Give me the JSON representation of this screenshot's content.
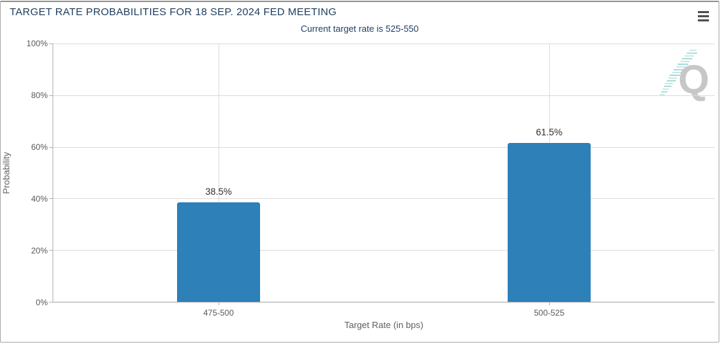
{
  "panel": {
    "title": "TARGET RATE PROBABILITIES FOR 18 SEP. 2024 FED MEETING",
    "subtitle": "Current target rate is 525-550"
  },
  "menu": {
    "icon": "hamburger-menu"
  },
  "watermark": {
    "letter": "Q"
  },
  "colors": {
    "bar": "#2d80b8",
    "title_text": "#1e3c5f",
    "tick_text": "#595959",
    "grid": "#dcdcdc",
    "axis": "#b3b3b3",
    "watermark_gray": "#c7c7c7",
    "watermark_teal": "#9fd8d4"
  },
  "chart_data": {
    "type": "bar",
    "title": "TARGET RATE PROBABILITIES FOR 18 SEP. 2024 FED MEETING",
    "subtitle": "Current target rate is 525-550",
    "categories": [
      "475-500",
      "500-525"
    ],
    "values": [
      38.5,
      61.5
    ],
    "value_labels": [
      "38.5%",
      "61.5%"
    ],
    "xlabel": "Target Rate (in bps)",
    "ylabel": "Probability",
    "ylim": [
      0,
      100
    ],
    "yticks": [
      "0%",
      "20%",
      "40%",
      "60%",
      "80%",
      "100%"
    ],
    "grid": true,
    "legend_position": "none",
    "bar_color": "#2d80b8"
  }
}
